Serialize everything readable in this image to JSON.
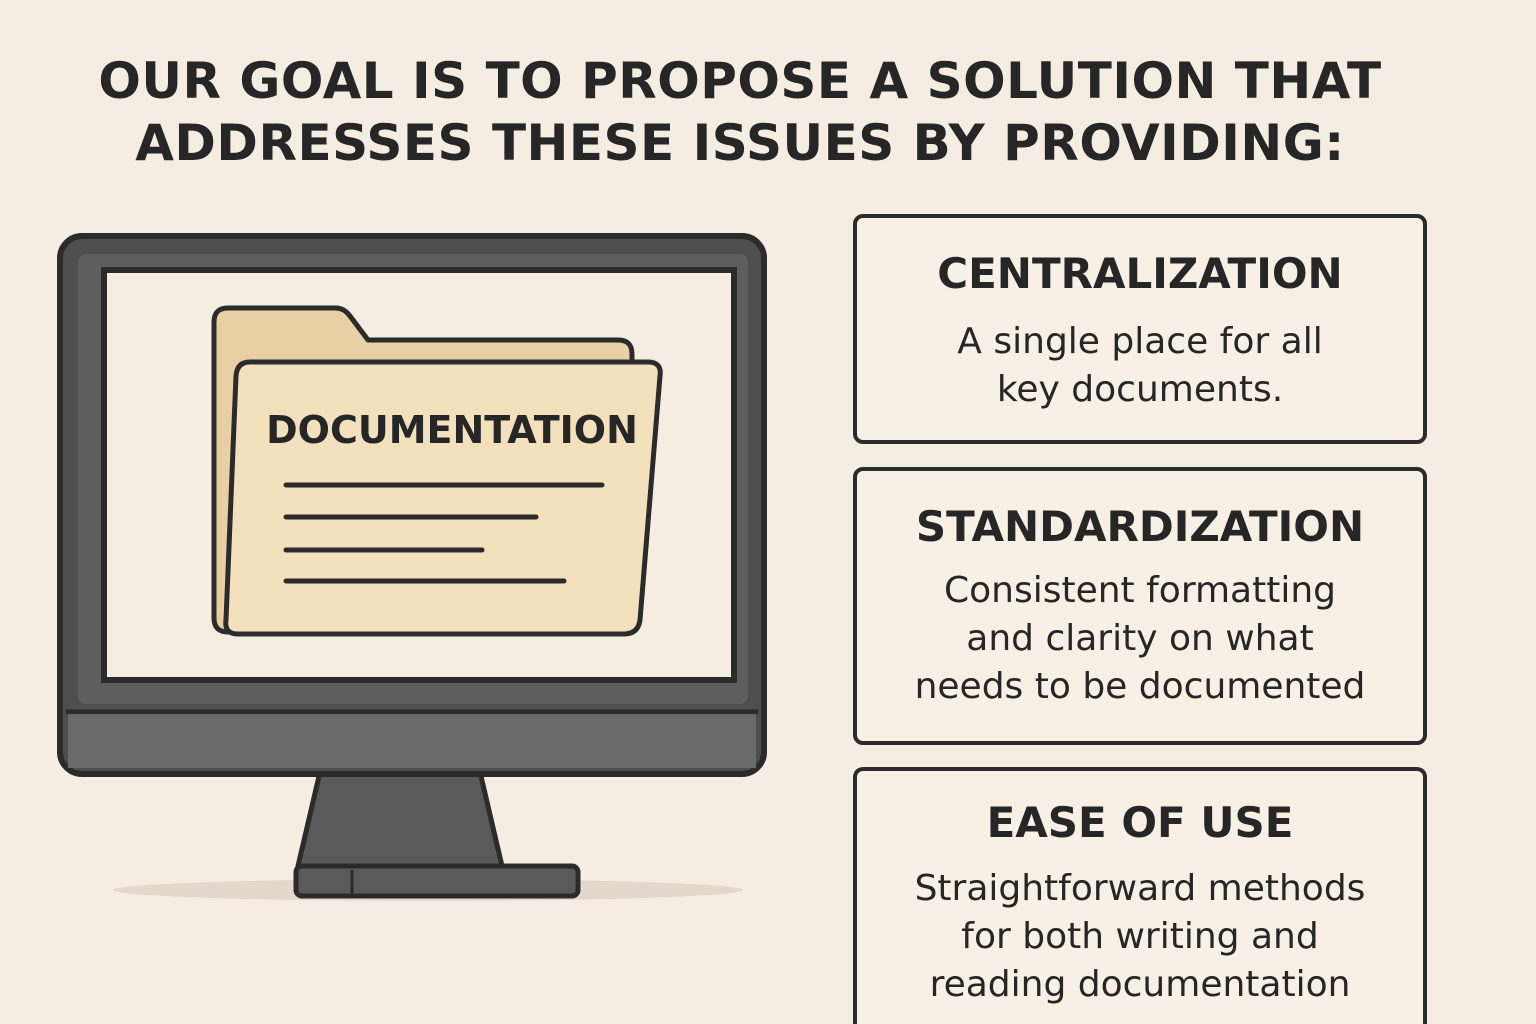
{
  "headline": {
    "line1": "OUR GOAL IS TO PROPOSE A SOLUTION THAT",
    "line2": "ADDRESSES THESE ISSUES BY PROVIDING:"
  },
  "illustration": {
    "folder_label": "DOCUMENTATION",
    "icons": [
      "desktop-monitor-icon",
      "folder-icon",
      "document-lines-icon"
    ]
  },
  "cards": [
    {
      "title": "CENTRALIZATION",
      "lines": [
        "A single place for all",
        "key documents."
      ]
    },
    {
      "title": "STANDARDIZATION",
      "lines": [
        "Consistent formatting",
        "and clarity on what",
        "needs to be documented"
      ]
    },
    {
      "title": "EASE OF USE",
      "lines": [
        "Straightforward methods",
        "for both writing and",
        "reading documentation"
      ]
    }
  ],
  "colors": {
    "background": "#f6ede2",
    "ink": "#262626",
    "monitor_frame": "#555555",
    "folder_back": "#e8cfa4",
    "folder_front": "#f3e1bd",
    "card_fill": "#f8efe5"
  }
}
